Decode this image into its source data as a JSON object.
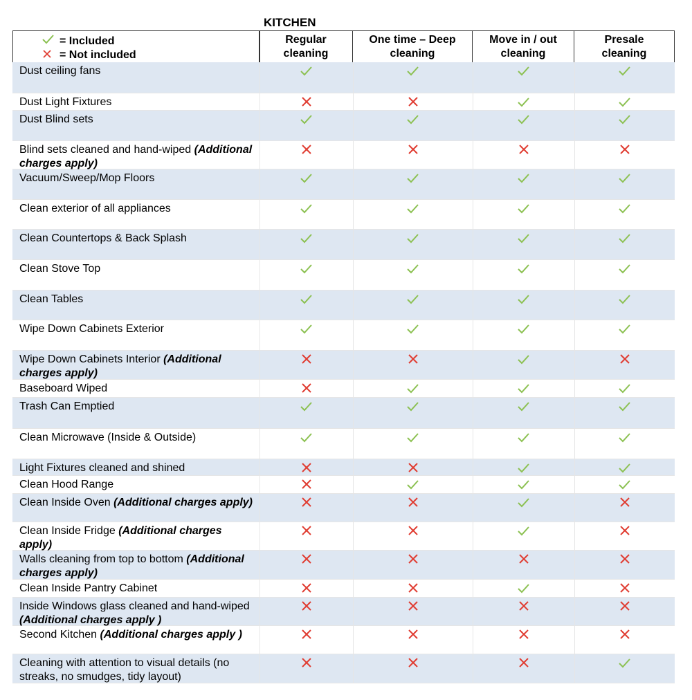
{
  "title": "KITCHEN",
  "legend": {
    "included": "= Included",
    "not_included": "= Not included"
  },
  "table": {
    "headers": [
      "Regular cleaning",
      "One time – Deep cleaning",
      "Move in / out cleaning",
      "Presale cleaning"
    ],
    "rows": [
      {
        "task": "Dust ceiling fans",
        "marks": [
          true,
          true,
          true,
          true
        ]
      },
      {
        "task": "Dust Light Fixtures",
        "marks": [
          false,
          false,
          true,
          true
        ]
      },
      {
        "task": "Dust Blind sets",
        "marks": [
          true,
          true,
          true,
          true
        ]
      },
      {
        "task": "Blind sets cleaned and hand-wiped",
        "note": "(Additional charges apply)",
        "marks": [
          false,
          false,
          false,
          false
        ]
      },
      {
        "task": "Vacuum/Sweep/Mop Floors",
        "marks": [
          true,
          true,
          true,
          true
        ]
      },
      {
        "task": "Clean exterior of all appliances",
        "marks": [
          true,
          true,
          true,
          true
        ]
      },
      {
        "task": "Clean Countertops & Back Splash",
        "marks": [
          true,
          true,
          true,
          true
        ]
      },
      {
        "task": "Clean Stove Top",
        "marks": [
          true,
          true,
          true,
          true
        ]
      },
      {
        "task": "Clean Tables",
        "marks": [
          true,
          true,
          true,
          true
        ]
      },
      {
        "task": "Wipe Down Cabinets Exterior",
        "marks": [
          true,
          true,
          true,
          true
        ]
      },
      {
        "task": "Wipe Down Cabinets Interior",
        "note": "(Additional charges apply)",
        "marks": [
          false,
          false,
          true,
          false
        ]
      },
      {
        "task": "Baseboard Wiped",
        "marks": [
          false,
          true,
          true,
          true
        ]
      },
      {
        "task": "Trash Can Emptied",
        "marks": [
          true,
          true,
          true,
          true
        ]
      },
      {
        "task": "Clean Microwave (Inside & Outside)",
        "marks": [
          true,
          true,
          true,
          true
        ]
      },
      {
        "task": "Light Fixtures cleaned and shined",
        "marks": [
          false,
          false,
          true,
          true
        ]
      },
      {
        "task": "Clean Hood Range",
        "marks": [
          false,
          true,
          true,
          true
        ]
      },
      {
        "task": "Clean Inside Oven",
        "note": "(Additional charges apply)",
        "marks": [
          false,
          false,
          true,
          false
        ]
      },
      {
        "task": "Clean Inside Fridge",
        "note": "(Additional charges apply)",
        "marks": [
          false,
          false,
          true,
          false
        ]
      },
      {
        "task": "Walls cleaning from top to bottom",
        "note": "(Additional charges apply)",
        "marks": [
          false,
          false,
          false,
          false
        ]
      },
      {
        "task": "Clean Inside Pantry Cabinet",
        "marks": [
          false,
          false,
          true,
          false
        ]
      },
      {
        "task": "Inside Windows glass cleaned and hand-wiped",
        "note": "(Additional charges apply )",
        "marks": [
          false,
          false,
          false,
          false
        ]
      },
      {
        "task": "Second Kitchen",
        "note": "(Additional charges apply )",
        "marks": [
          false,
          false,
          false,
          false
        ]
      },
      {
        "task": "Cleaning with attention to visual details (no streaks, no smudges, tidy layout)",
        "marks": [
          false,
          false,
          false,
          true
        ]
      }
    ]
  }
}
